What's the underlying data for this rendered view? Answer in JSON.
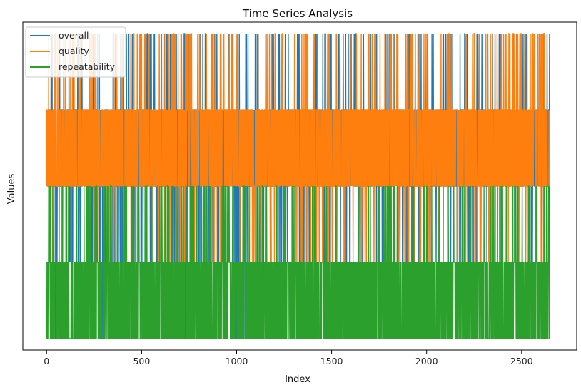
{
  "chart_data": {
    "type": "line",
    "title": "Time Series Analysis",
    "xlabel": "Index",
    "ylabel": "Values",
    "xlim": [
      -125,
      2790
    ],
    "ylim": [
      -0.15,
      4.15
    ],
    "x_ticks": [
      0,
      500,
      1000,
      1500,
      2000,
      2500
    ],
    "x_tick_labels": [
      "0",
      "500",
      "1000",
      "1500",
      "2000",
      "2500"
    ],
    "y_ticks_shown": false,
    "n_points": 2650,
    "grid": false,
    "legend": {
      "placement": "top-left",
      "entries": [
        "overall",
        "quality",
        "repeatability"
      ]
    },
    "series": [
      {
        "name": "overall",
        "color": "#1f77b4",
        "value_levels": [
          0,
          1,
          2,
          3,
          4
        ],
        "note_values": "discrete levels; dominant level 2-3 with frequent spikes to 4 and dips to 0-1"
      },
      {
        "name": "quality",
        "color": "#ff7f0e",
        "value_levels": [
          1,
          2,
          3,
          4
        ]
      },
      {
        "name": "repeatability",
        "color": "#2ca02c",
        "value_levels": [
          0,
          1,
          2
        ]
      }
    ]
  }
}
